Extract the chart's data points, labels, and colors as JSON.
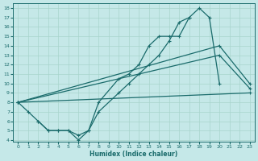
{
  "xlabel": "Humidex (Indice chaleur)",
  "xlim": [
    -0.5,
    23.5
  ],
  "ylim": [
    3.8,
    18.5
  ],
  "yticks": [
    4,
    5,
    6,
    7,
    8,
    9,
    10,
    11,
    12,
    13,
    14,
    15,
    16,
    17,
    18
  ],
  "xticks": [
    0,
    1,
    2,
    3,
    4,
    5,
    6,
    7,
    8,
    9,
    10,
    11,
    12,
    13,
    14,
    15,
    16,
    17,
    18,
    19,
    20,
    21,
    22,
    23
  ],
  "bg_color": "#c5e8e8",
  "line_color": "#1a6b6b",
  "grid_color": "#a8d4cc",
  "line1_x": [
    0,
    1,
    2,
    3,
    4,
    5,
    6,
    7,
    8,
    10,
    11,
    12,
    13,
    14,
    15,
    16,
    17,
    18,
    19,
    20
  ],
  "line1_y": [
    8,
    7,
    6,
    5,
    5,
    5,
    4,
    5,
    8,
    10.5,
    11,
    12,
    14,
    15,
    15,
    15,
    17,
    18,
    17,
    10
  ],
  "line2_x": [
    0,
    23
  ],
  "line2_y": [
    8,
    9
  ],
  "line3_x": [
    0,
    20,
    23
  ],
  "line3_y": [
    8,
    14,
    10
  ],
  "line4_x": [
    0,
    20,
    23
  ],
  "line4_y": [
    8,
    13,
    9.5
  ],
  "line5_x": [
    2,
    3,
    4,
    5,
    6,
    7,
    8,
    10,
    11,
    12,
    13,
    14,
    15,
    16,
    17
  ],
  "line5_y": [
    6,
    5,
    5,
    5,
    4.5,
    5,
    7,
    9,
    10,
    11,
    12,
    13,
    14.5,
    16.5,
    17
  ]
}
